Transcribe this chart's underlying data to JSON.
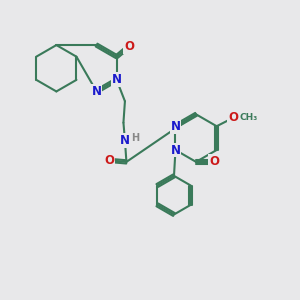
{
  "bg_color": "#e8e8ea",
  "bond_color": "#3a7a5a",
  "bond_width": 1.5,
  "dbo": 0.055,
  "atom_colors": {
    "N": "#1a1acc",
    "O": "#cc1a1a",
    "H": "#888888",
    "C": "#3a7a5a"
  },
  "fs": 8.5,
  "fs_small": 7.0,
  "xlim": [
    0,
    10
  ],
  "ylim": [
    0,
    10
  ]
}
